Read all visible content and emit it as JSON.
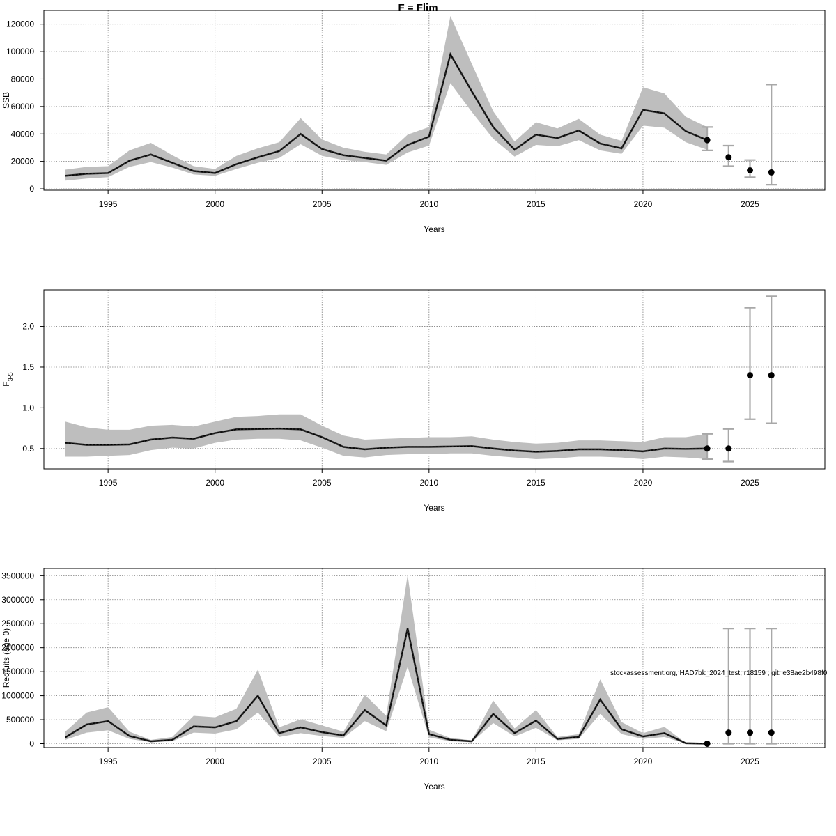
{
  "page": {
    "title": "F = Flim"
  },
  "watermark": "stockassessment.org, HAD7bk_2024_test, r18159 , git: e38ae2b498f0",
  "colors": {
    "band": "#bebebe",
    "line": "#000000",
    "grid": "#808080",
    "errorbar": "#a8a8a8"
  },
  "chart_data": [
    {
      "type": "line",
      "name": "ssb-panel",
      "title": "",
      "xlabel": "Years",
      "ylabel": "SSB",
      "xlim": [
        1992,
        2028.5
      ],
      "ylim": [
        -1000,
        130000
      ],
      "x_ticks": [
        1995,
        2000,
        2005,
        2010,
        2015,
        2020,
        2025
      ],
      "y_ticks": [
        0,
        20000,
        40000,
        60000,
        80000,
        100000,
        120000
      ],
      "y_tick_labels": [
        "0",
        "20000",
        "40000",
        "60000",
        "80000",
        "100000",
        "120000"
      ],
      "grid": true,
      "estimate": {
        "x": [
          1993,
          1994,
          1995,
          1996,
          1997,
          1998,
          1999,
          2000,
          2001,
          2002,
          2003,
          2004,
          2005,
          2006,
          2007,
          2008,
          2009,
          2010,
          2011,
          2012,
          2013,
          2014,
          2015,
          2016,
          2017,
          2018,
          2019,
          2020,
          2021,
          2022,
          2023
        ],
        "y": [
          9500,
          11000,
          11500,
          20500,
          25000,
          19000,
          13000,
          11500,
          18000,
          23000,
          27500,
          40000,
          29000,
          24500,
          22500,
          20500,
          32000,
          38000,
          98000,
          71000,
          45000,
          28500,
          39500,
          37000,
          42500,
          33000,
          29500,
          57500,
          55000,
          42000,
          35500
        ],
        "lower": [
          6000,
          7500,
          8500,
          16000,
          19500,
          15500,
          10500,
          9500,
          14500,
          19000,
          22500,
          32500,
          24000,
          21000,
          19500,
          17500,
          26500,
          31500,
          77000,
          56000,
          36500,
          23500,
          32000,
          31000,
          35500,
          28000,
          25500,
          46000,
          44500,
          34000,
          28500
        ],
        "upper": [
          14000,
          16000,
          16500,
          28000,
          33500,
          24500,
          16500,
          14500,
          24000,
          29500,
          34000,
          51500,
          36000,
          30000,
          27000,
          25000,
          39500,
          45000,
          126000,
          91000,
          56500,
          34500,
          48500,
          44000,
          51000,
          39500,
          35000,
          74000,
          69500,
          52500,
          45000
        ]
      },
      "forecast": {
        "x": [
          2023,
          2024,
          2025,
          2026
        ],
        "y": [
          35500,
          23000,
          13500,
          12000
        ],
        "lower": [
          28000,
          16500,
          8500,
          3000
        ],
        "upper": [
          45000,
          31500,
          21000,
          76000
        ]
      }
    },
    {
      "type": "line",
      "name": "fbar-panel",
      "title": "",
      "xlabel": "Years",
      "ylabel": "F",
      "ylabel_subscript": "3-5",
      "xlim": [
        1992,
        2028.5
      ],
      "ylim": [
        0.25,
        2.45
      ],
      "x_ticks": [
        1995,
        2000,
        2005,
        2010,
        2015,
        2020,
        2025
      ],
      "y_ticks": [
        0.5,
        1.0,
        1.5,
        2.0
      ],
      "y_tick_labels": [
        "0.5",
        "1.0",
        "1.5",
        "2.0"
      ],
      "grid": true,
      "estimate": {
        "x": [
          1993,
          1994,
          1995,
          1996,
          1997,
          1998,
          1999,
          2000,
          2001,
          2002,
          2003,
          2004,
          2005,
          2006,
          2007,
          2008,
          2009,
          2010,
          2011,
          2012,
          2013,
          2014,
          2015,
          2016,
          2017,
          2018,
          2019,
          2020,
          2021,
          2022,
          2023
        ],
        "y": [
          0.57,
          0.545,
          0.545,
          0.55,
          0.61,
          0.635,
          0.62,
          0.69,
          0.735,
          0.74,
          0.745,
          0.735,
          0.64,
          0.52,
          0.49,
          0.51,
          0.52,
          0.52,
          0.525,
          0.53,
          0.5,
          0.475,
          0.46,
          0.47,
          0.49,
          0.49,
          0.48,
          0.465,
          0.5,
          0.495,
          0.5
        ],
        "lower": [
          0.4,
          0.4,
          0.41,
          0.42,
          0.48,
          0.51,
          0.5,
          0.57,
          0.61,
          0.62,
          0.62,
          0.6,
          0.51,
          0.41,
          0.39,
          0.42,
          0.43,
          0.43,
          0.44,
          0.44,
          0.41,
          0.39,
          0.37,
          0.38,
          0.4,
          0.4,
          0.39,
          0.37,
          0.4,
          0.39,
          0.37
        ],
        "upper": [
          0.83,
          0.76,
          0.73,
          0.73,
          0.78,
          0.79,
          0.77,
          0.83,
          0.89,
          0.9,
          0.92,
          0.92,
          0.78,
          0.66,
          0.61,
          0.62,
          0.63,
          0.64,
          0.64,
          0.65,
          0.61,
          0.58,
          0.56,
          0.57,
          0.6,
          0.6,
          0.59,
          0.58,
          0.64,
          0.64,
          0.68
        ]
      },
      "forecast": {
        "x": [
          2023,
          2024,
          2025,
          2026
        ],
        "y": [
          0.5,
          0.5,
          1.4,
          1.4
        ],
        "lower": [
          0.37,
          0.34,
          0.86,
          0.81
        ],
        "upper": [
          0.68,
          0.74,
          2.23,
          2.37
        ]
      }
    },
    {
      "type": "line",
      "name": "recruits-panel",
      "title": "",
      "xlabel": "Years",
      "ylabel": "Recruits (age 0)",
      "xlim": [
        1992,
        2028.5
      ],
      "ylim": [
        -80000,
        3650000
      ],
      "x_ticks": [
        1995,
        2000,
        2005,
        2010,
        2015,
        2020,
        2025
      ],
      "y_ticks": [
        0,
        500000,
        1000000,
        1500000,
        2000000,
        2500000,
        3000000,
        3500000
      ],
      "y_tick_labels": [
        "0",
        "500000",
        "1000000",
        "1500000",
        "2000000",
        "2500000",
        "3000000",
        "3500000"
      ],
      "grid": true,
      "estimate": {
        "x": [
          1993,
          1994,
          1995,
          1996,
          1997,
          1998,
          1999,
          2000,
          2001,
          2002,
          2003,
          2004,
          2005,
          2006,
          2007,
          2008,
          2009,
          2010,
          2011,
          2012,
          2013,
          2014,
          2015,
          2016,
          2017,
          2018,
          2019,
          2020,
          2021,
          2022,
          2023
        ],
        "y": [
          130000,
          400000,
          470000,
          160000,
          50000,
          80000,
          360000,
          340000,
          470000,
          1000000,
          220000,
          340000,
          240000,
          170000,
          700000,
          380000,
          2400000,
          200000,
          80000,
          50000,
          620000,
          220000,
          480000,
          100000,
          140000,
          920000,
          300000,
          150000,
          220000,
          10000,
          0
        ],
        "lower": [
          80000,
          230000,
          280000,
          100000,
          30000,
          50000,
          230000,
          210000,
          300000,
          650000,
          140000,
          220000,
          160000,
          120000,
          470000,
          260000,
          1600000,
          130000,
          50000,
          30000,
          430000,
          150000,
          330000,
          70000,
          100000,
          620000,
          200000,
          100000,
          140000,
          6000,
          0
        ],
        "upper": [
          250000,
          650000,
          760000,
          250000,
          80000,
          140000,
          580000,
          550000,
          730000,
          1540000,
          340000,
          510000,
          380000,
          250000,
          1020000,
          580000,
          3520000,
          290000,
          120000,
          70000,
          900000,
          320000,
          700000,
          140000,
          200000,
          1340000,
          450000,
          220000,
          350000,
          15000,
          0
        ]
      },
      "forecast": {
        "x": [
          2023,
          2024,
          2025,
          2026
        ],
        "y": [
          0,
          230000,
          230000,
          230000
        ],
        "lower": [
          0,
          0,
          0,
          0
        ],
        "upper": [
          0,
          2400000,
          2400000,
          2400000
        ]
      }
    }
  ]
}
